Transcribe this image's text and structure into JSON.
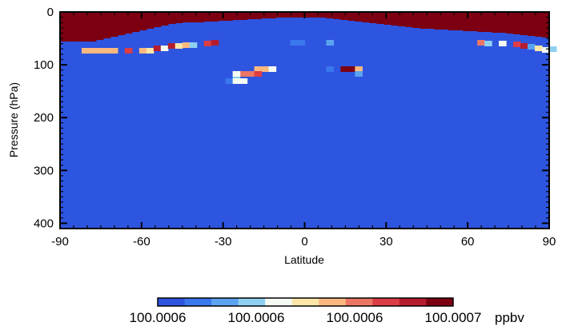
{
  "chart_data": {
    "type": "heatmap",
    "xlabel": "Latitude",
    "ylabel": "Pressure (hPa)",
    "xlim": [
      -90,
      90
    ],
    "ylim": [
      410,
      0
    ],
    "xticks": [
      "-90",
      "-60",
      "-30",
      "0",
      "30",
      "60",
      "90"
    ],
    "yticks": [
      "0",
      "100",
      "200",
      "300",
      "400"
    ],
    "background_value": "low (blue)",
    "colorbar": {
      "colors": [
        "#2e55e0",
        "#3a78ee",
        "#5aa3f0",
        "#8fd0f0",
        "#f5fbf2",
        "#fce7a8",
        "#fbb97f",
        "#ec7665",
        "#dd3d45",
        "#b51d2f",
        "#7c0012"
      ],
      "tick_labels": [
        "100.0006",
        "100.0006",
        "100.0006",
        "100.0007"
      ],
      "units": "ppbv"
    },
    "colors": {
      "background": "#2e55e0",
      "top": "#7c0012"
    }
  }
}
